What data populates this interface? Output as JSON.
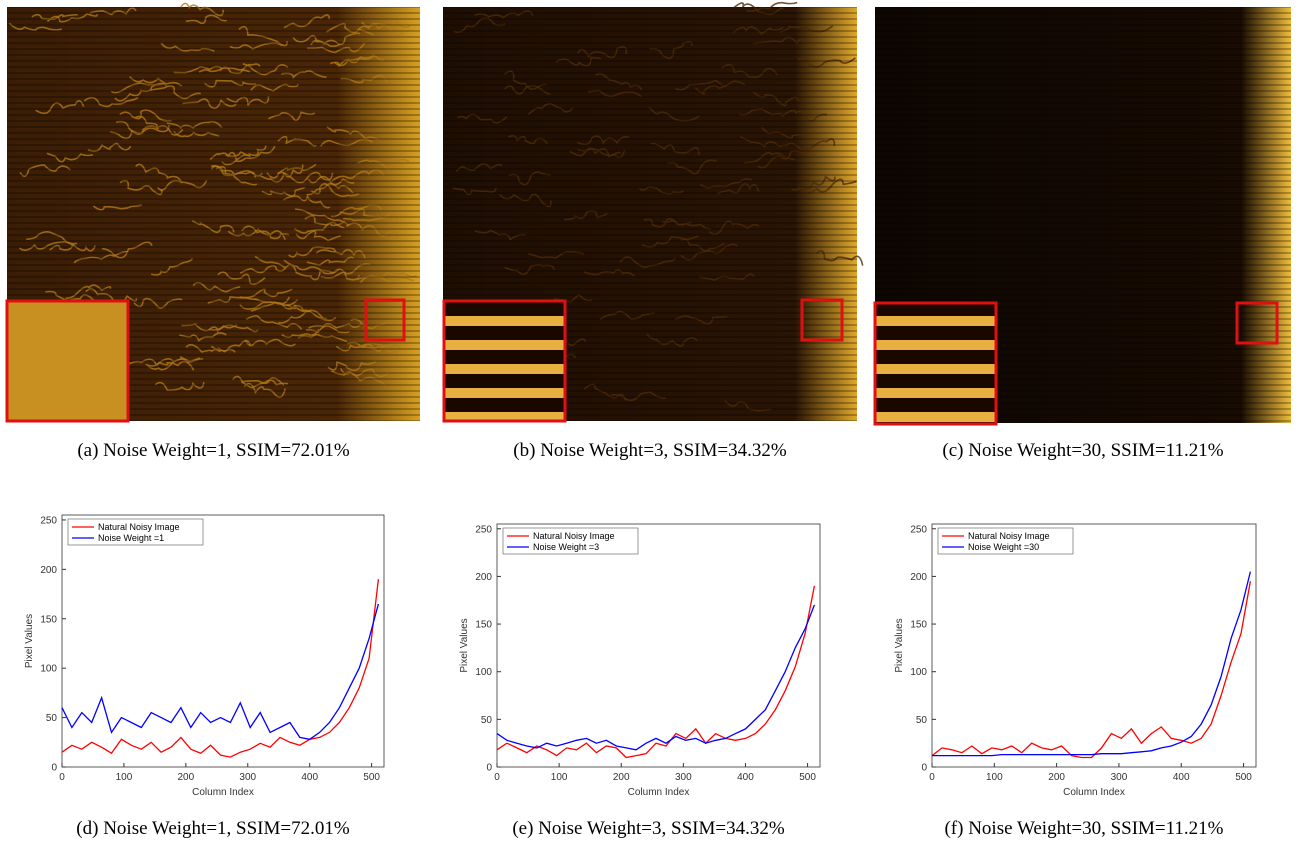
{
  "image_captions": [
    "(a) Noise Weight=1, SSIM=72.01%",
    "(b) Noise Weight=3, SSIM=34.32%",
    "(c) Noise Weight=30, SSIM=11.21%"
  ],
  "chart_data": [
    {
      "type": "line",
      "caption": "(d) Noise Weight=1, SSIM=72.01%",
      "xlabel": "Column Index",
      "ylabel": "Pixel Values",
      "x": [
        0,
        16,
        32,
        48,
        64,
        80,
        96,
        112,
        128,
        144,
        160,
        176,
        192,
        208,
        224,
        240,
        256,
        272,
        288,
        304,
        320,
        336,
        352,
        368,
        384,
        400,
        416,
        432,
        448,
        464,
        480,
        496,
        511
      ],
      "xlim": [
        0,
        520
      ],
      "ylim": [
        0,
        255
      ],
      "xticks": [
        0,
        100,
        200,
        300,
        400,
        500
      ],
      "yticks": [
        0,
        50,
        100,
        150,
        200,
        250
      ],
      "series": [
        {
          "name": "Natural Noisy Image",
          "color": "#ff0000",
          "values": [
            15,
            22,
            18,
            25,
            20,
            14,
            28,
            22,
            18,
            25,
            15,
            20,
            30,
            18,
            14,
            22,
            12,
            10,
            15,
            18,
            24,
            20,
            30,
            25,
            22,
            28,
            30,
            35,
            45,
            60,
            80,
            110,
            190
          ]
        },
        {
          "name": "Noise Weight =1",
          "color": "#0000ff",
          "values": [
            60,
            40,
            55,
            45,
            70,
            35,
            50,
            45,
            40,
            55,
            50,
            45,
            60,
            40,
            55,
            45,
            50,
            45,
            65,
            40,
            55,
            35,
            40,
            45,
            30,
            28,
            35,
            45,
            60,
            80,
            100,
            130,
            165
          ]
        }
      ]
    },
    {
      "type": "line",
      "caption": "(e) Noise Weight=3, SSIM=34.32%",
      "xlabel": "Column Index",
      "ylabel": "Pixel Values",
      "x": [
        0,
        16,
        32,
        48,
        64,
        80,
        96,
        112,
        128,
        144,
        160,
        176,
        192,
        208,
        224,
        240,
        256,
        272,
        288,
        304,
        320,
        336,
        352,
        368,
        384,
        400,
        416,
        432,
        448,
        464,
        480,
        496,
        511
      ],
      "xlim": [
        0,
        520
      ],
      "ylim": [
        0,
        255
      ],
      "xticks": [
        0,
        100,
        200,
        300,
        400,
        500
      ],
      "yticks": [
        0,
        50,
        100,
        150,
        200,
        250
      ],
      "series": [
        {
          "name": "Natural Noisy Image",
          "color": "#ff0000",
          "values": [
            18,
            25,
            20,
            15,
            22,
            18,
            12,
            20,
            18,
            25,
            15,
            22,
            20,
            10,
            12,
            14,
            25,
            22,
            35,
            30,
            40,
            25,
            35,
            30,
            28,
            30,
            35,
            45,
            60,
            80,
            105,
            140,
            190
          ]
        },
        {
          "name": "Noise Weight =3",
          "color": "#0000ff",
          "values": [
            35,
            28,
            25,
            22,
            20,
            25,
            22,
            25,
            28,
            30,
            25,
            28,
            22,
            20,
            18,
            25,
            30,
            25,
            32,
            28,
            30,
            25,
            28,
            30,
            35,
            40,
            50,
            60,
            80,
            100,
            125,
            145,
            170
          ]
        }
      ]
    },
    {
      "type": "line",
      "caption": "(f) Noise Weight=30, SSIM=11.21%",
      "xlabel": "Column Index",
      "ylabel": "Pixel Values",
      "x": [
        0,
        16,
        32,
        48,
        64,
        80,
        96,
        112,
        128,
        144,
        160,
        176,
        192,
        208,
        224,
        240,
        256,
        272,
        288,
        304,
        320,
        336,
        352,
        368,
        384,
        400,
        416,
        432,
        448,
        464,
        480,
        496,
        511
      ],
      "xlim": [
        0,
        520
      ],
      "ylim": [
        0,
        255
      ],
      "xticks": [
        0,
        100,
        200,
        300,
        400,
        500
      ],
      "yticks": [
        0,
        50,
        100,
        150,
        200,
        250
      ],
      "series": [
        {
          "name": "Natural Noisy Image",
          "color": "#ff0000",
          "values": [
            12,
            20,
            18,
            15,
            22,
            14,
            20,
            18,
            22,
            15,
            25,
            20,
            18,
            22,
            12,
            10,
            10,
            20,
            35,
            30,
            40,
            25,
            35,
            42,
            30,
            28,
            25,
            30,
            45,
            75,
            110,
            140,
            195
          ]
        },
        {
          "name": "Noise Weight =30",
          "color": "#0000ff",
          "values": [
            12,
            12,
            12,
            12,
            12,
            12,
            12,
            13,
            13,
            13,
            13,
            13,
            13,
            13,
            13,
            13,
            13,
            14,
            14,
            14,
            15,
            16,
            17,
            20,
            22,
            26,
            32,
            45,
            65,
            95,
            135,
            165,
            205
          ]
        }
      ]
    }
  ]
}
